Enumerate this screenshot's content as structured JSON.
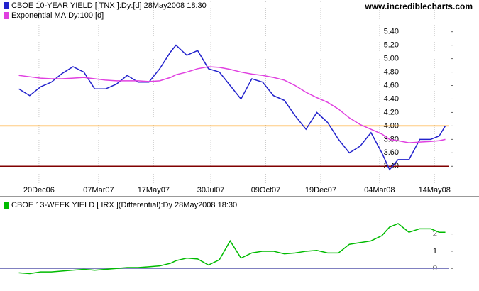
{
  "site": "www.incrediblecharts.com",
  "chart_data": [
    {
      "type": "line",
      "x": [
        "2006-11-24",
        "2006-12-08",
        "2006-12-22",
        "2007-01-05",
        "2007-01-19",
        "2007-02-02",
        "2007-02-16",
        "2007-03-02",
        "2007-03-16",
        "2007-03-30",
        "2007-04-13",
        "2007-04-27",
        "2007-05-11",
        "2007-05-25",
        "2007-06-08",
        "2007-06-15",
        "2007-06-29",
        "2007-07-13",
        "2007-07-27",
        "2007-08-10",
        "2007-08-24",
        "2007-09-07",
        "2007-09-21",
        "2007-10-05",
        "2007-10-19",
        "2007-11-02",
        "2007-11-16",
        "2007-11-30",
        "2007-12-14",
        "2007-12-28",
        "2008-01-11",
        "2008-01-25",
        "2008-02-08",
        "2008-02-22",
        "2008-03-07",
        "2008-03-17",
        "2008-03-28",
        "2008-04-11",
        "2008-04-25",
        "2008-05-09",
        "2008-05-20",
        "2008-05-28"
      ],
      "series": [
        {
          "name": "CBOE 10-YEAR YIELD [ TNX ]:Dy:[d]  28May2008 18:30",
          "color": "#2222cc",
          "values": [
            4.55,
            4.45,
            4.58,
            4.65,
            4.78,
            4.88,
            4.8,
            4.55,
            4.55,
            4.62,
            4.75,
            4.65,
            4.65,
            4.85,
            5.1,
            5.2,
            5.05,
            5.12,
            4.85,
            4.8,
            4.6,
            4.4,
            4.7,
            4.65,
            4.45,
            4.38,
            4.15,
            3.95,
            4.2,
            4.05,
            3.8,
            3.6,
            3.7,
            3.9,
            3.6,
            3.35,
            3.5,
            3.5,
            3.8,
            3.8,
            3.85,
            4.0
          ]
        },
        {
          "name": "Exponential MA:Dy:100:[d]",
          "color": "#e040e0",
          "values": [
            4.75,
            4.73,
            4.71,
            4.7,
            4.7,
            4.71,
            4.72,
            4.7,
            4.68,
            4.67,
            4.67,
            4.67,
            4.66,
            4.67,
            4.72,
            4.76,
            4.8,
            4.85,
            4.88,
            4.87,
            4.84,
            4.8,
            4.77,
            4.75,
            4.72,
            4.68,
            4.6,
            4.5,
            4.42,
            4.35,
            4.25,
            4.12,
            4.02,
            3.95,
            3.88,
            3.8,
            3.78,
            3.75,
            3.76,
            3.77,
            3.78,
            3.8
          ]
        }
      ],
      "xlim": [
        "2006-11-18",
        "2008-06-02"
      ],
      "xticks": [
        {
          "value": "2006-12-20",
          "label": "20Dec06"
        },
        {
          "value": "2007-03-07",
          "label": "07Mar07"
        },
        {
          "value": "2007-05-17",
          "label": "17May07"
        },
        {
          "value": "2007-07-30",
          "label": "30Jul07"
        },
        {
          "value": "2007-10-09",
          "label": "09Oct07"
        },
        {
          "value": "2007-12-19",
          "label": "19Dec07"
        },
        {
          "value": "2008-03-04",
          "label": "04Mar08"
        },
        {
          "value": "2008-05-14",
          "label": "14May08"
        }
      ],
      "ylim": [
        3.15,
        5.85
      ],
      "yticks": [
        {
          "value": 3.4,
          "label": "3.40"
        },
        {
          "value": 3.6,
          "label": "3.60"
        },
        {
          "value": 3.8,
          "label": "3.80"
        },
        {
          "value": 4.0,
          "label": "4.00"
        },
        {
          "value": 4.2,
          "label": "4.20"
        },
        {
          "value": 4.4,
          "label": "4.40"
        },
        {
          "value": 4.6,
          "label": "4.60"
        },
        {
          "value": 4.8,
          "label": "4.80"
        },
        {
          "value": 5.0,
          "label": "5.00"
        },
        {
          "value": 5.2,
          "label": "5.20"
        },
        {
          "value": 5.4,
          "label": "5.40"
        }
      ],
      "hlines": [
        {
          "value": 4.0,
          "color": "#ff9900"
        },
        {
          "value": 3.4,
          "color": "#800000"
        }
      ]
    },
    {
      "type": "line",
      "x": [
        "2006-11-24",
        "2006-12-08",
        "2006-12-22",
        "2007-01-05",
        "2007-01-19",
        "2007-02-02",
        "2007-02-16",
        "2007-03-02",
        "2007-03-16",
        "2007-03-30",
        "2007-04-13",
        "2007-04-27",
        "2007-05-11",
        "2007-05-25",
        "2007-06-08",
        "2007-06-15",
        "2007-06-29",
        "2007-07-13",
        "2007-07-27",
        "2007-08-10",
        "2007-08-24",
        "2007-09-07",
        "2007-09-21",
        "2007-10-05",
        "2007-10-19",
        "2007-11-02",
        "2007-11-16",
        "2007-11-30",
        "2007-12-14",
        "2007-12-28",
        "2008-01-11",
        "2008-01-25",
        "2008-02-08",
        "2008-02-22",
        "2008-03-07",
        "2008-03-17",
        "2008-03-28",
        "2008-04-11",
        "2008-04-25",
        "2008-05-09",
        "2008-05-20",
        "2008-05-28"
      ],
      "series": [
        {
          "name": "CBOE 13-WEEK YIELD [ IRX ](Differential):Dy  28May2008 18:30",
          "color": "#00bb00",
          "values": [
            -0.25,
            -0.3,
            -0.2,
            -0.2,
            -0.15,
            -0.1,
            -0.05,
            -0.1,
            -0.05,
            0.0,
            0.05,
            0.05,
            0.1,
            0.15,
            0.3,
            0.45,
            0.6,
            0.55,
            0.2,
            0.5,
            1.6,
            0.6,
            0.9,
            1.0,
            1.0,
            0.85,
            0.9,
            1.0,
            1.05,
            0.9,
            0.9,
            1.4,
            1.5,
            1.6,
            1.9,
            2.4,
            2.6,
            2.1,
            2.3,
            2.3,
            2.1,
            2.1
          ]
        }
      ],
      "xlim": [
        "2006-11-18",
        "2008-06-02"
      ],
      "ylim": [
        -1.1,
        4.0
      ],
      "yticks": [
        0,
        1,
        2
      ],
      "hlines": [
        {
          "value": 0,
          "color": "#8080c0"
        }
      ]
    }
  ]
}
